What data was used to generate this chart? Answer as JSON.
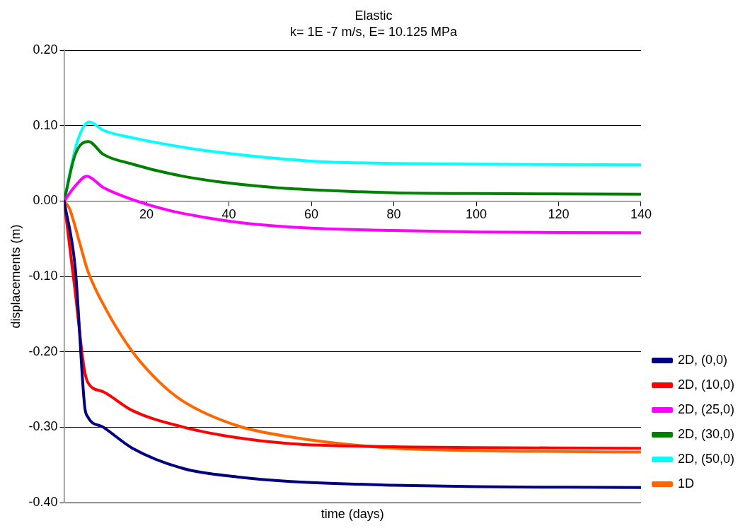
{
  "chart_data": {
    "type": "line",
    "title": "Elastic",
    "subtitle": "k= 1E -7 m/s, E= 10.125 MPa",
    "xlabel": "time (days)",
    "ylabel": "displacements (m)",
    "xlim": [
      0,
      140
    ],
    "xticks": [
      {
        "value": 0,
        "label": null
      },
      20,
      40,
      60,
      80,
      100,
      120,
      140
    ],
    "ylim": [
      -0.4,
      0.2
    ],
    "yticks": [
      {
        "value": -0.4,
        "label": "-0.40"
      },
      {
        "value": -0.3,
        "label": "-0.30"
      },
      {
        "value": -0.2,
        "label": "-0.20"
      },
      {
        "value": -0.1,
        "label": "-0.10"
      },
      {
        "value": 0,
        "label": "0.00"
      },
      {
        "value": 0.1,
        "label": "0.10"
      },
      {
        "value": 0.2,
        "label": "0.20"
      }
    ],
    "grid": "y",
    "legend": "right",
    "marker": "none",
    "line_style": "solid",
    "series": [
      {
        "name": "2D, (0,0)",
        "color": "#000080",
        "x": [
          0,
          2.7,
          5,
          5.7,
          9.5,
          16.6,
          29,
          42,
          55,
          80,
          100,
          140
        ],
        "values": [
          0,
          -0.089,
          -0.273,
          -0.286,
          -0.3,
          -0.328,
          -0.355,
          -0.366,
          -0.372,
          -0.377,
          -0.379,
          -0.38
        ]
      },
      {
        "name": "2D, (10,0)",
        "color": "#ff0000",
        "x": [
          0,
          2.7,
          4.8,
          5.7,
          9.5,
          16.6,
          29,
          42,
          55,
          80,
          100,
          140
        ],
        "values": [
          0,
          -0.121,
          -0.22,
          -0.24,
          -0.253,
          -0.278,
          -0.3,
          -0.314,
          -0.322,
          -0.326,
          -0.327,
          -0.328
        ]
      },
      {
        "name": "2D, (25,0)",
        "color": "#ff00ff",
        "x": [
          0,
          2.7,
          5.5,
          9.5,
          16.6,
          26,
          35.6,
          45,
          60,
          80,
          100,
          140
        ],
        "values": [
          0,
          0.02,
          0.033,
          0.018,
          0.002,
          -0.013,
          -0.023,
          -0.03,
          -0.036,
          -0.039,
          -0.041,
          -0.042
        ]
      },
      {
        "name": "2D, (30,0)",
        "color": "#008000",
        "x": [
          0,
          2.7,
          5.9,
          9.5,
          16.6,
          26,
          35.6,
          51,
          60,
          80,
          100,
          140
        ],
        "values": [
          0,
          0.062,
          0.079,
          0.062,
          0.049,
          0.036,
          0.027,
          0.018,
          0.015,
          0.011,
          0.01,
          0.009
        ]
      },
      {
        "name": "2D, (50,0)",
        "color": "#00ffff",
        "x": [
          0,
          3.2,
          6.1,
          9.5,
          16.6,
          26,
          35.6,
          60,
          80,
          100,
          140
        ],
        "values": [
          0,
          0.079,
          0.105,
          0.094,
          0.084,
          0.074,
          0.066,
          0.053,
          0.05,
          0.049,
          0.048
        ]
      },
      {
        "name": "1D",
        "color": "#ff6600",
        "x": [
          0,
          1.3,
          3.8,
          5.7,
          10.3,
          16.6,
          22.9,
          29,
          42,
          55,
          77.5,
          100,
          140
        ],
        "values": [
          0,
          -0.01,
          -0.056,
          -0.092,
          -0.145,
          -0.2,
          -0.239,
          -0.266,
          -0.298,
          -0.313,
          -0.327,
          -0.331,
          -0.333
        ]
      }
    ]
  }
}
